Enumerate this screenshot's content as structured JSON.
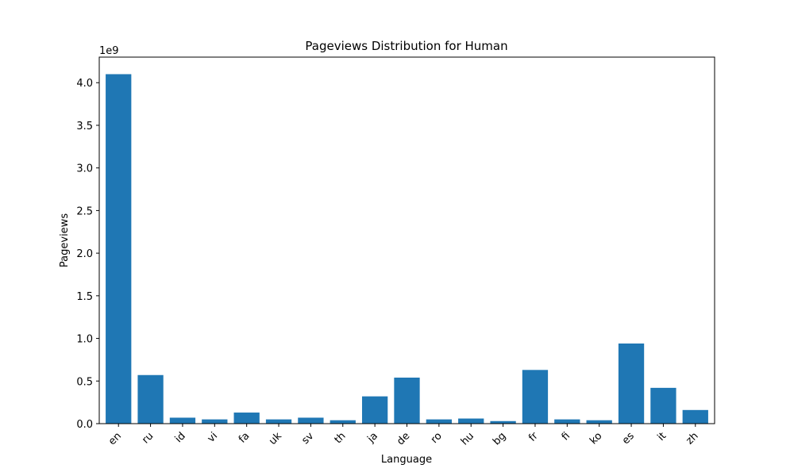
{
  "chart_data": {
    "type": "bar",
    "title": "Pageviews Distribution for Human",
    "xlabel": "Language",
    "ylabel": "Pageviews",
    "offset_label": "1e9",
    "categories": [
      "en",
      "ru",
      "id",
      "vi",
      "fa",
      "uk",
      "sv",
      "th",
      "ja",
      "de",
      "ro",
      "hu",
      "bg",
      "fr",
      "fi",
      "ko",
      "es",
      "it",
      "zh"
    ],
    "values": [
      4.1,
      0.57,
      0.07,
      0.05,
      0.13,
      0.05,
      0.07,
      0.04,
      0.32,
      0.54,
      0.05,
      0.06,
      0.03,
      0.63,
      0.05,
      0.04,
      0.94,
      0.42,
      0.16
    ],
    "value_scale": 1000000000,
    "ylim": [
      0,
      4.3
    ],
    "yticks": [
      "0.0",
      "0.5",
      "1.0",
      "1.5",
      "2.0",
      "2.5",
      "3.0",
      "3.5",
      "4.0"
    ],
    "bar_color": "#1f77b4",
    "grid": false,
    "legend": "none"
  }
}
